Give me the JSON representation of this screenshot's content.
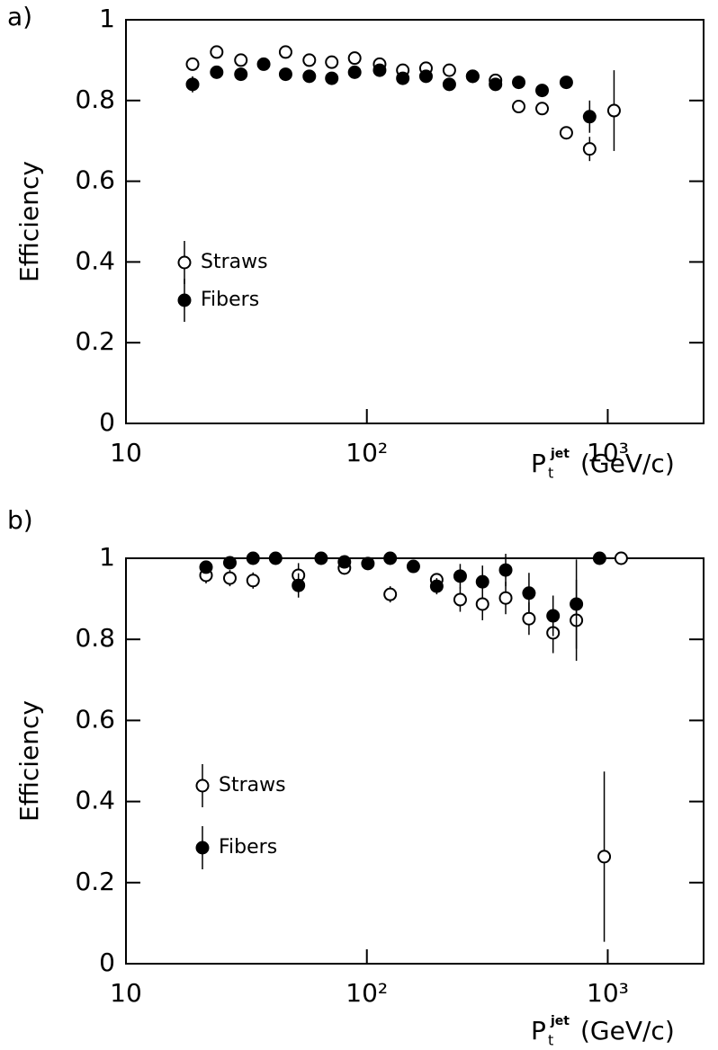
{
  "chart_data": [
    {
      "type": "scatter",
      "panel_label": "a)",
      "ylabel": "Efficiency",
      "xlabel_base": "P",
      "xlabel_sub": "t",
      "xlabel_sup": "jet",
      "xlabel_unit": "(GeV/c)",
      "log_x": true,
      "xlim": [
        10,
        2500
      ],
      "ylim": [
        0,
        1
      ],
      "xticks": [
        10,
        {
          "value": 100,
          "label": "10²"
        },
        {
          "value": 1000,
          "label": "10³"
        }
      ],
      "yticks": [
        0,
        0.2,
        0.4,
        0.6,
        0.8,
        1
      ],
      "legend": "left",
      "series": [
        {
          "name": "Straws",
          "marker": "open",
          "color": "#000000",
          "x": [
            18.9,
            23.8,
            30,
            46,
            57.7,
            71.5,
            89,
            113,
            141,
            176,
            220,
            275,
            342,
            427,
            534,
            673,
            841,
            1062
          ],
          "values": [
            0.89,
            0.92,
            0.9,
            0.92,
            0.9,
            0.895,
            0.905,
            0.89,
            0.875,
            0.88,
            0.875,
            0.86,
            0.85,
            0.785,
            0.78,
            0.72,
            0.68,
            0.775
          ],
          "errors": [
            0.01,
            0.01,
            0.01,
            0.01,
            0.01,
            0.01,
            0.01,
            0.01,
            0.01,
            0.01,
            0.01,
            0.01,
            0.01,
            0.01,
            0.01,
            0.015,
            0.03,
            0.1
          ]
        },
        {
          "name": "Fibers",
          "marker": "filled",
          "color": "#000000",
          "x": [
            18.9,
            23.8,
            30,
            37.3,
            46,
            57.7,
            71.5,
            89,
            113,
            141,
            176,
            220,
            275,
            342,
            427,
            534,
            673,
            841
          ],
          "values": [
            0.84,
            0.87,
            0.865,
            0.89,
            0.865,
            0.86,
            0.855,
            0.87,
            0.875,
            0.855,
            0.86,
            0.84,
            0.86,
            0.84,
            0.845,
            0.825,
            0.845,
            0.76
          ],
          "errors": [
            0.02,
            0.01,
            0.01,
            0.01,
            0.01,
            0.01,
            0.01,
            0.01,
            0.01,
            0.01,
            0.01,
            0.01,
            0.01,
            0.01,
            0.01,
            0.01,
            0.01,
            0.04
          ]
        }
      ]
    },
    {
      "type": "scatter",
      "panel_label": "b)",
      "ylabel": "Efficiency",
      "xlabel_base": "P",
      "xlabel_sub": "t",
      "xlabel_sup": "jet",
      "xlabel_unit": "(GeV/c)",
      "log_x": true,
      "xlim": [
        10,
        2500
      ],
      "ylim": [
        0,
        1
      ],
      "xticks": [
        10,
        {
          "value": 100,
          "label": "10²"
        },
        {
          "value": 1000,
          "label": "10³"
        }
      ],
      "yticks": [
        0,
        0.2,
        0.4,
        0.6,
        0.8,
        1
      ],
      "legend": "left",
      "series": [
        {
          "name": "Straws",
          "marker": "open",
          "color": "#000000",
          "x": [
            21.5,
            27,
            33.7,
            52,
            80.7,
            125,
            195,
            244,
            302,
            377,
            471,
            593,
            741,
            967,
            1137
          ],
          "values": [
            0.958,
            0.951,
            0.945,
            0.958,
            0.976,
            0.911,
            0.947,
            0.898,
            0.887,
            0.902,
            0.851,
            0.816,
            0.847,
            0.264,
            1.0
          ],
          "errors": [
            0.02,
            0.02,
            0.02,
            0.03,
            0.01,
            0.02,
            0.01,
            0.03,
            0.04,
            0.04,
            0.04,
            0.05,
            0.1,
            0.21,
            0.0
          ]
        },
        {
          "name": "Fibers",
          "marker": "filled",
          "color": "#000000",
          "x": [
            21.5,
            27,
            33.7,
            41.8,
            52,
            64.6,
            80.7,
            101,
            125,
            156,
            195,
            244,
            302,
            377,
            471,
            593,
            741,
            925
          ],
          "values": [
            0.978,
            0.989,
            1.0,
            1.0,
            0.933,
            1.0,
            0.991,
            0.987,
            1.0,
            0.98,
            0.931,
            0.956,
            0.942,
            0.971,
            0.914,
            0.858,
            0.887,
            1.0
          ],
          "errors": [
            0.01,
            0.01,
            0.0,
            0.0,
            0.03,
            0.0,
            0.01,
            0.01,
            0.0,
            0.01,
            0.02,
            0.03,
            0.04,
            0.04,
            0.05,
            0.05,
            0.11,
            0.0
          ]
        }
      ]
    }
  ]
}
